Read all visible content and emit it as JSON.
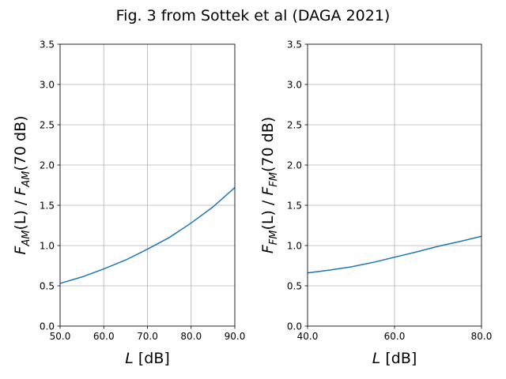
{
  "figure": {
    "title": "Fig. 3 from Sottek et al (DAGA 2021)"
  },
  "chart_data": [
    {
      "type": "line",
      "xlabel": "L [dB]",
      "ylabel": "F_AM(L) / F_AM(70 dB)",
      "ylabel_parts": {
        "f1": "F",
        "sub1": "AM",
        "mid": "(L) / ",
        "f2": "F",
        "sub2": "AM",
        "end": "(70 dB)"
      },
      "xlabel_parts": {
        "var": "L",
        "unit": " [dB]"
      },
      "xlim": [
        50,
        90
      ],
      "ylim": [
        0,
        3.5
      ],
      "xticks": [
        50,
        60,
        70,
        80,
        90
      ],
      "xtick_labels": [
        "50.0",
        "60.0",
        "70.0",
        "80.0",
        "90.0"
      ],
      "yticks": [
        0,
        0.5,
        1.0,
        1.5,
        2.0,
        2.5,
        3.0,
        3.5
      ],
      "ytick_labels": [
        "0.0",
        "0.5",
        "1.0",
        "1.5",
        "2.0",
        "2.5",
        "3.0",
        "3.5"
      ],
      "grid": true,
      "color": "#1f77b4",
      "series": [
        {
          "x": [
            50,
            55,
            60,
            65,
            70,
            75,
            80,
            85,
            90
          ],
          "y": [
            0.53,
            0.61,
            0.71,
            0.82,
            0.955,
            1.1,
            1.28,
            1.48,
            1.72
          ]
        }
      ]
    },
    {
      "type": "line",
      "xlabel": "L [dB]",
      "ylabel": "F_FM(L) / F_FM(70 dB)",
      "ylabel_parts": {
        "f1": "F",
        "sub1": "FM",
        "mid": "(L) / ",
        "f2": "F",
        "sub2": "FM",
        "end": "(70 dB)"
      },
      "xlabel_parts": {
        "var": "L",
        "unit": " [dB]"
      },
      "xlim": [
        40,
        80
      ],
      "ylim": [
        0,
        3.5
      ],
      "xticks": [
        40,
        60,
        80
      ],
      "xtick_labels": [
        "40.0",
        "60.0",
        "80.0"
      ],
      "yticks": [
        0,
        0.5,
        1.0,
        1.5,
        2.0,
        2.5,
        3.0,
        3.5
      ],
      "ytick_labels": [
        "0.0",
        "0.5",
        "1.0",
        "1.5",
        "2.0",
        "2.5",
        "3.0",
        "3.5"
      ],
      "grid": true,
      "color": "#1f77b4",
      "series": [
        {
          "x": [
            40,
            45,
            50,
            55,
            60,
            65,
            70,
            75,
            80
          ],
          "y": [
            0.66,
            0.695,
            0.735,
            0.79,
            0.855,
            0.92,
            0.99,
            1.05,
            1.115
          ]
        }
      ]
    }
  ]
}
